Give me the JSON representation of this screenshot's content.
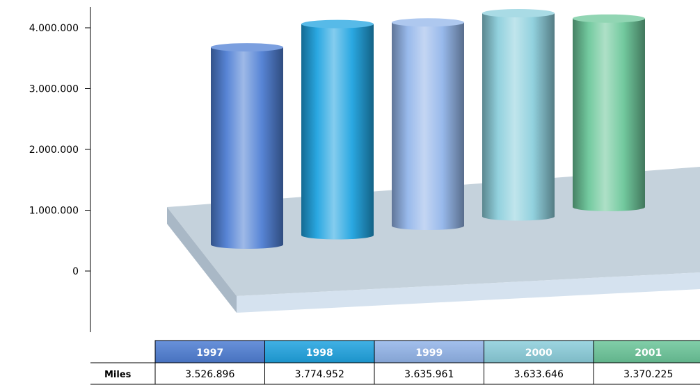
{
  "chart_data": {
    "type": "bar",
    "style": "3d-cylinder",
    "categories": [
      "1997",
      "1998",
      "1999",
      "2000",
      "2001"
    ],
    "series": [
      {
        "name": "Miles",
        "values": [
          3526896,
          3774952,
          3635961,
          3633646,
          3370225
        ]
      }
    ],
    "value_labels": [
      "3.526.896",
      "3.774.952",
      "3.635.961",
      "3.633.646",
      "3.370.225"
    ],
    "yticks": [
      "4.000.000",
      "3.000.000",
      "2.000.000",
      "1.000.000",
      "0"
    ],
    "ytick_values": [
      4000000,
      3000000,
      2000000,
      1000000,
      0
    ],
    "ylim": [
      0,
      4000000
    ],
    "grid": false,
    "legend": "data-table-below",
    "colors": [
      "#4f7fd4",
      "#1fa3e0",
      "#93b5ea",
      "#8ccfdc",
      "#6cc79a"
    ],
    "title": "",
    "xlabel": "",
    "ylabel": ""
  }
}
